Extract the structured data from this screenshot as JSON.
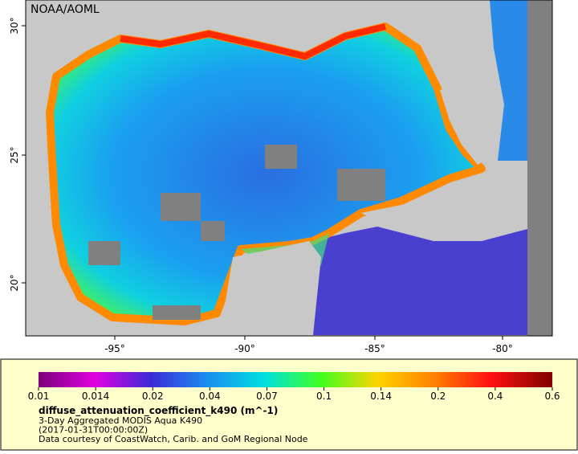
{
  "map": {
    "label": "NOAA/AOML",
    "lon_ticks": [
      "-95°",
      "-90°",
      "-85°",
      "-80°"
    ],
    "lat_ticks": [
      "20°",
      "25°",
      "30°"
    ]
  },
  "legend": {
    "ticks": [
      "0.01",
      "0.014",
      "0.02",
      "0.04",
      "0.07",
      "0.1",
      "0.14",
      "0.2",
      "0.4",
      "0.6"
    ],
    "title": "diffuse_attenuation_coefficient_k490 (m^-1)",
    "lines": [
      "3-Day Aggregated MODIS Aqua K490",
      "(2017-01-31T00:00:00Z)",
      "Data courtesy of CoastWatch, Carib. and GoM Regional Node"
    ]
  }
}
